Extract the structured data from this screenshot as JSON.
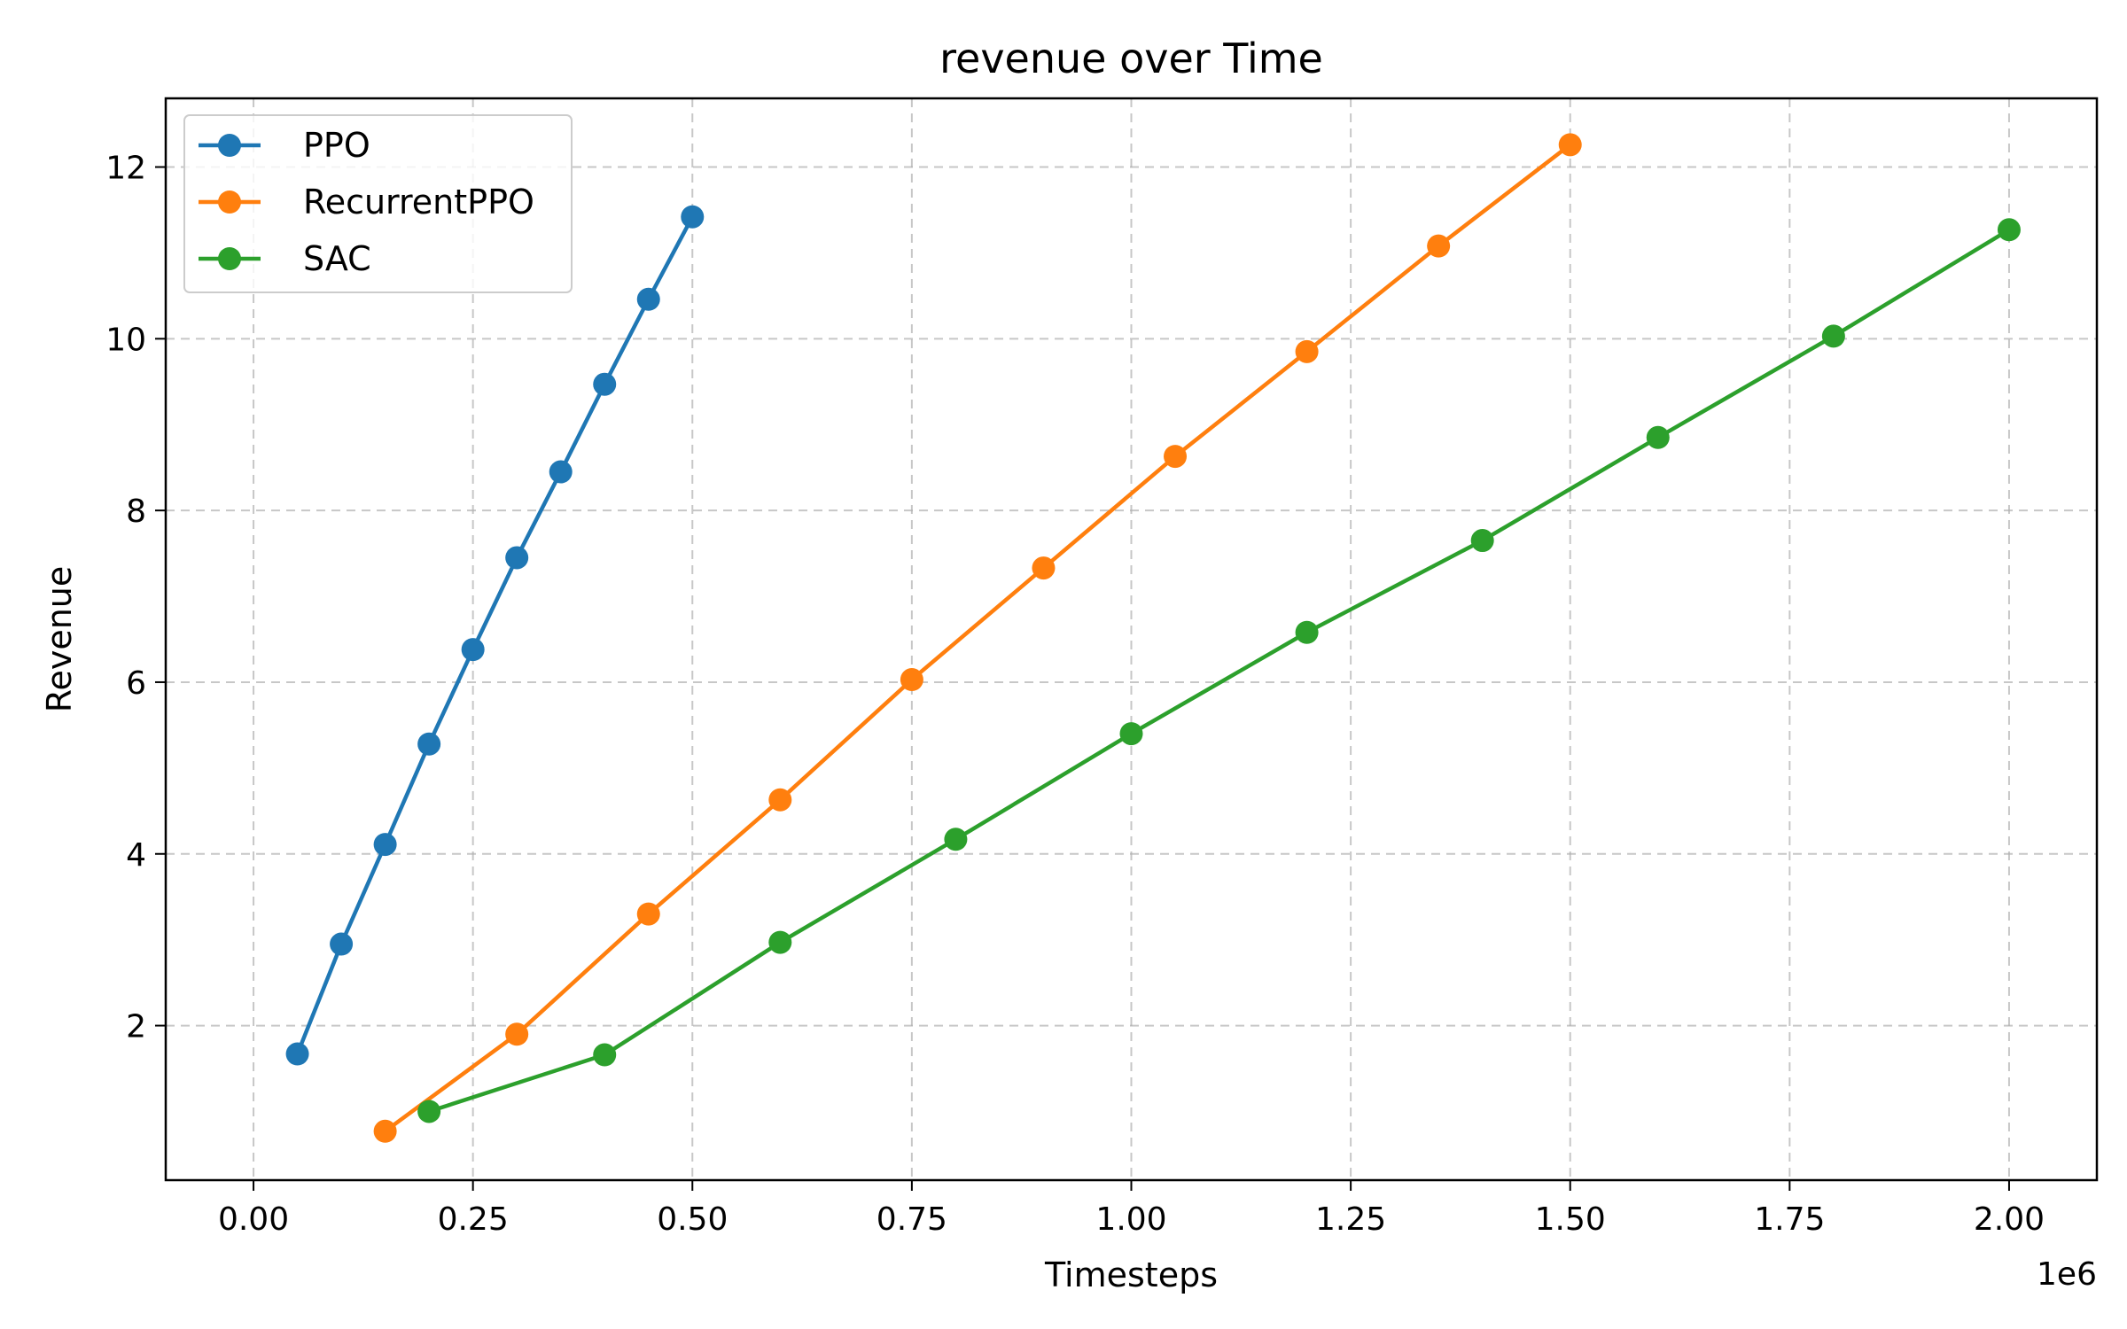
{
  "chart_data": {
    "type": "line",
    "title": "revenue over Time",
    "xlabel": "Timesteps",
    "ylabel": "Revenue",
    "x_offset_label": "1e6",
    "xlim": [
      -0.1,
      2.1
    ],
    "ylim": [
      0.2,
      12.8
    ],
    "xticks": [
      0.0,
      0.25,
      0.5,
      0.75,
      1.0,
      1.25,
      1.5,
      1.75,
      2.0
    ],
    "xtick_labels": [
      "0.00",
      "0.25",
      "0.50",
      "0.75",
      "1.00",
      "1.25",
      "1.50",
      "1.75",
      "2.00"
    ],
    "yticks": [
      2,
      4,
      6,
      8,
      10,
      12
    ],
    "ytick_labels": [
      "2",
      "4",
      "6",
      "8",
      "10",
      "12"
    ],
    "grid": true,
    "legend_position": "top-left",
    "series": [
      {
        "name": "PPO",
        "color": "#1f77b4",
        "x": [
          0.05,
          0.1,
          0.15,
          0.2,
          0.25,
          0.3,
          0.35,
          0.4,
          0.45,
          0.5
        ],
        "y": [
          1.67,
          2.95,
          4.11,
          5.28,
          6.38,
          7.45,
          8.45,
          9.47,
          10.46,
          11.42
        ]
      },
      {
        "name": "RecurrentPPO",
        "color": "#ff7f0e",
        "x": [
          0.15,
          0.3,
          0.45,
          0.6,
          0.75,
          0.9,
          1.05,
          1.2,
          1.35,
          1.5
        ],
        "y": [
          0.77,
          1.9,
          3.3,
          4.63,
          6.03,
          7.33,
          8.63,
          9.85,
          11.08,
          12.26
        ]
      },
      {
        "name": "SAC",
        "color": "#2ca02c",
        "x": [
          0.2,
          0.4,
          0.6,
          0.8,
          1.0,
          1.2,
          1.4,
          1.6,
          1.8,
          2.0
        ],
        "y": [
          1.0,
          1.66,
          2.97,
          4.17,
          5.4,
          6.58,
          7.65,
          8.85,
          10.03,
          11.27
        ]
      }
    ]
  }
}
